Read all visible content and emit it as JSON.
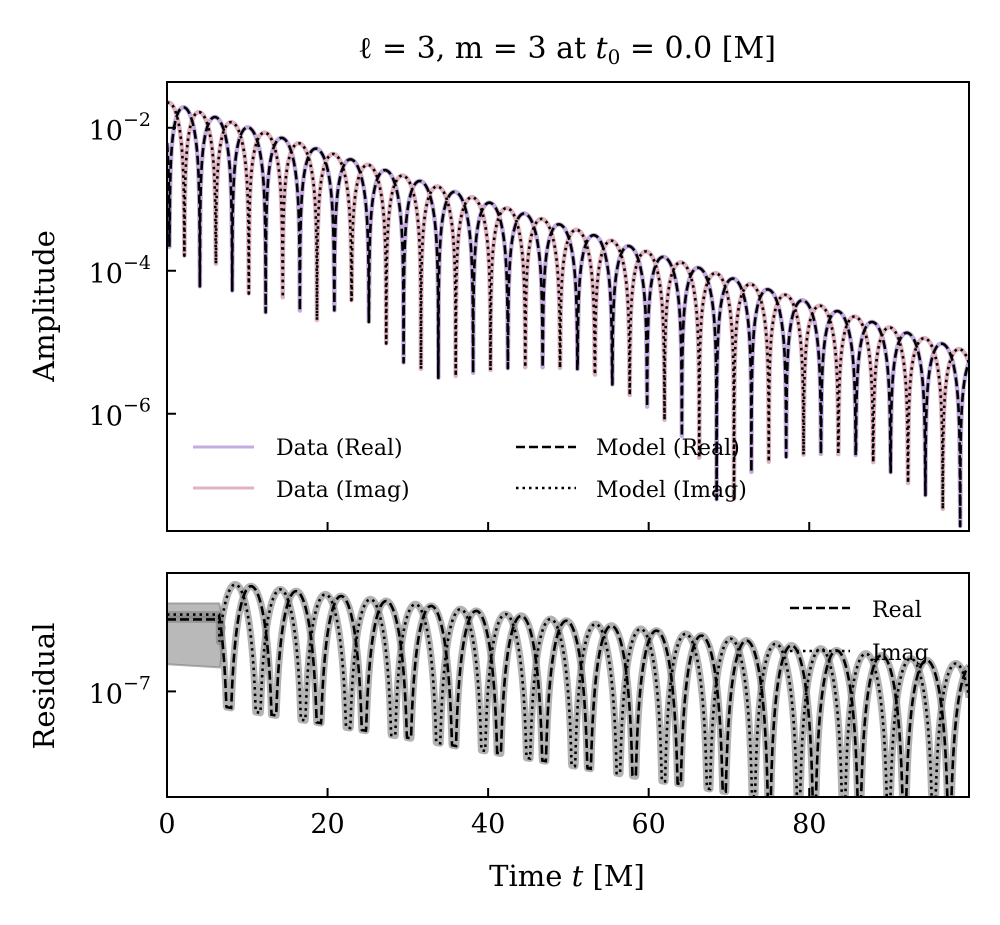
{
  "chart_data": [
    {
      "type": "line",
      "panel": "top",
      "title": "ℓ = 3, m = 3 at t₀ = 0.0 [M]",
      "xlabel": "",
      "ylabel": "Amplitude",
      "yscale": "log",
      "xlim": [
        0,
        99.9
      ],
      "ylim_log10": [
        -7.64,
        -1.36
      ],
      "yticks": [
        {
          "log10": -2,
          "base": "10",
          "exp": "−2"
        },
        {
          "log10": -4,
          "base": "10",
          "exp": "−4"
        },
        {
          "log10": -6,
          "base": "10",
          "exp": "−6"
        }
      ],
      "xticks": [
        0,
        20,
        40,
        60,
        80
      ],
      "grid": false,
      "legend": {
        "placement": "lower-left",
        "columns": 2,
        "entries": [
          {
            "label": "Data (Real)",
            "style": "solid",
            "color": "#c3acdf"
          },
          {
            "label": "Data (Imag)",
            "style": "solid",
            "color": "#e0b3c1"
          },
          {
            "label": "Model (Real)",
            "style": "dashed",
            "color": "#000000"
          },
          {
            "label": "Model (Imag)",
            "style": "dotted",
            "color": "#000000"
          }
        ]
      },
      "signal_model": {
        "description": "Absolute value of damped sinusoid |A·e^(−γt)·cos/sin(ωt+φ)|",
        "peak_log10_at_t0": -1.64,
        "decay_log10_per_M": -0.035,
        "omega": 0.725,
        "phase": 2.2,
        "early_chirp": 0.9,
        "early_chirp_timescale": 6.0
      },
      "series": [
        {
          "name": "Data (Real)",
          "component": "real",
          "color": "#c3acdf",
          "style": "solid",
          "observed_dip_times": [
            1.5,
            7.0,
            11.8,
            16.4,
            20.8,
            25.2,
            29.5,
            33.8,
            38.3,
            42.5,
            46.9
          ]
        },
        {
          "name": "Data (Imag)",
          "component": "imag",
          "color": "#e0b3c1",
          "style": "solid",
          "observed_dip_times": [
            4.4,
            9.5,
            14.2,
            18.7,
            23.0,
            27.4,
            31.7,
            36.0,
            40.3,
            44.6,
            49.2
          ]
        },
        {
          "name": "Model (Real)",
          "component": "real",
          "color": "#000000",
          "style": "dashed"
        },
        {
          "name": "Model (Imag)",
          "component": "imag",
          "color": "#000000",
          "style": "dotted"
        }
      ],
      "approx_points": [
        {
          "t": 0,
          "real": 0.015,
          "imag": 0.021
        },
        {
          "t": 5,
          "real": 0.023,
          "imag": 3e-06
        },
        {
          "t": 50,
          "peak": 0.0003
        },
        {
          "t": 99,
          "peak": 7e-06
        }
      ]
    },
    {
      "type": "line",
      "panel": "bottom",
      "xlabel": "Time t [M]",
      "ylabel": "Residual",
      "yscale": "log",
      "xlim": [
        0,
        99.9
      ],
      "ylim_log10": [
        -7.66,
        -6.26
      ],
      "yticks": [
        {
          "log10": -7,
          "base": "10",
          "exp": "−7"
        }
      ],
      "xticks": [
        0,
        20,
        40,
        60,
        80
      ],
      "xticklabels": [
        "0",
        "20",
        "40",
        "60",
        "80"
      ],
      "grid": false,
      "legend": {
        "placement": "upper-right",
        "entries": [
          {
            "label": "Real",
            "style": "dashed",
            "color": "#000000"
          },
          {
            "label": "Imag",
            "style": "dotted",
            "color": "#000000"
          }
        ]
      },
      "residual_model": {
        "peak_log10_at_t10": -6.34,
        "decay_log10_per_M": -0.0055,
        "omega": 0.56,
        "phase_real": 0.4,
        "phase_imag": 1.5,
        "band_color": "#808080",
        "early_flat_until_t": 6.5,
        "early_level_log10": -6.55
      },
      "series": [
        {
          "name": "Real",
          "style": "dashed",
          "color": "#000000",
          "band": true
        },
        {
          "name": "Imag",
          "style": "dotted",
          "color": "#000000",
          "band": true
        }
      ]
    }
  ],
  "labels": {
    "title_main": "ℓ = 3, m = 3 at ",
    "title_t0": "t",
    "title_sub": "0",
    "title_tail": " = 0.0 [M]",
    "top_ylabel": "Amplitude",
    "bottom_ylabel": "Residual",
    "xlabel_main": "Time ",
    "xlabel_var": "t",
    "xlabel_unit": " [M]"
  }
}
